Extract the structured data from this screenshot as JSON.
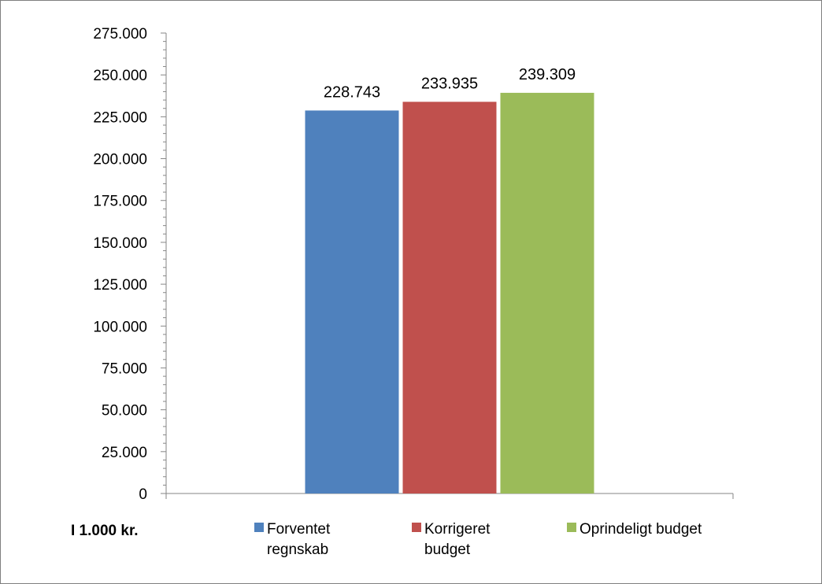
{
  "chart_data": {
    "type": "bar",
    "unit_label": "I 1.000 kr.",
    "categories": [
      ""
    ],
    "series": [
      {
        "name": "Forventet regnskab",
        "name_lines": [
          "Forventet",
          "regnskab"
        ],
        "values": [
          228743
        ],
        "value_label": "228.743",
        "color": "#4f81bd"
      },
      {
        "name": "Korrigeret budget",
        "name_lines": [
          "Korrigeret",
          "budget"
        ],
        "values": [
          233935
        ],
        "value_label": "233.935",
        "color": "#c0504d"
      },
      {
        "name": "Oprindeligt budget",
        "name_lines": [
          "Oprindeligt budget"
        ],
        "values": [
          239309
        ],
        "value_label": "239.309",
        "color": "#9bbb59"
      }
    ],
    "ylim": [
      0,
      275000
    ],
    "yticks": [
      0,
      25000,
      50000,
      75000,
      100000,
      125000,
      150000,
      175000,
      200000,
      225000,
      250000,
      275000
    ],
    "ytick_labels": [
      "0",
      "25.000",
      "50.000",
      "75.000",
      "100.000",
      "125.000",
      "150.000",
      "175.000",
      "200.000",
      "225.000",
      "250.000",
      "275.000"
    ],
    "grid": false,
    "legend_position": "bottom"
  }
}
